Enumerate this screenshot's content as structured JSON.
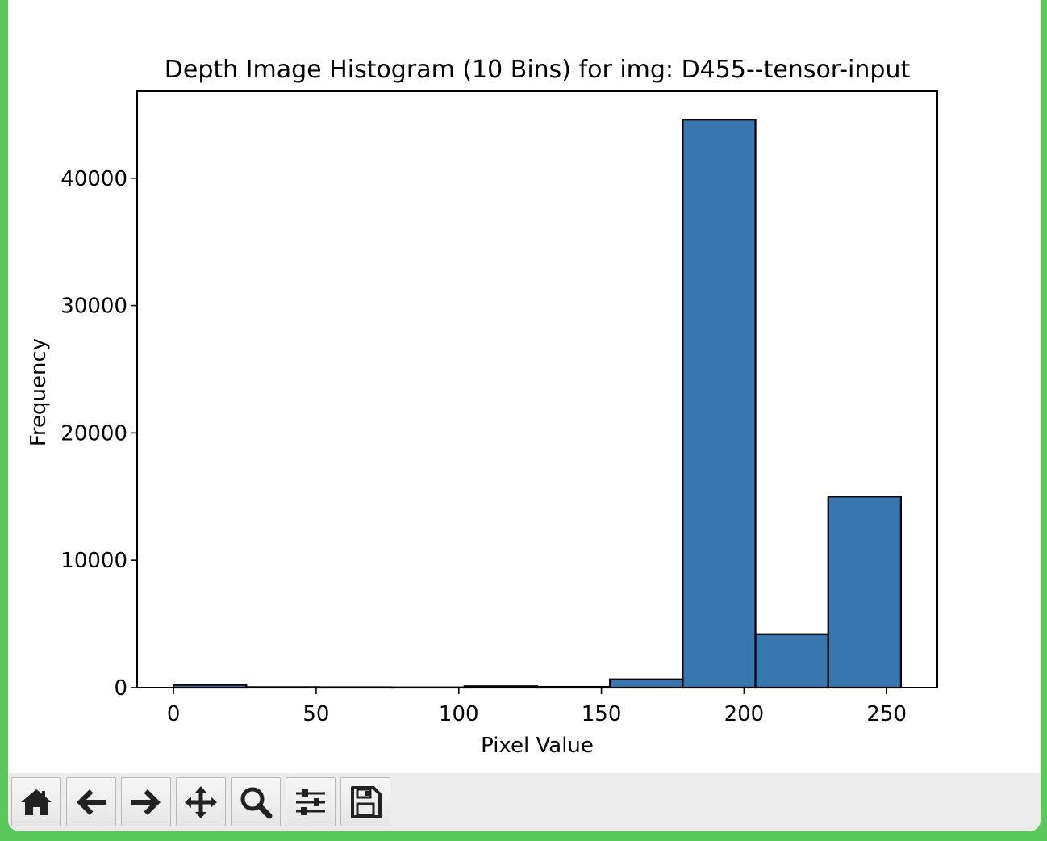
{
  "chart_data": {
    "type": "bar",
    "title": "Depth Image Histogram (10 Bins) for img: D455--tensor-input",
    "xlabel": "Pixel Value",
    "ylabel": "Frequency",
    "bin_edges": [
      0,
      25.5,
      51,
      76.5,
      102,
      127.5,
      153,
      178.5,
      204,
      229.5,
      255
    ],
    "values": [
      220,
      40,
      30,
      20,
      110,
      60,
      650,
      44600,
      4200,
      15000
    ],
    "xlim": [
      -12.75,
      267.75
    ],
    "ylim": [
      0,
      46830
    ],
    "xticks": [
      0,
      50,
      100,
      150,
      200,
      250
    ],
    "yticks": [
      0,
      10000,
      20000,
      30000,
      40000
    ],
    "xtick_labels": [
      "0",
      "50",
      "100",
      "150",
      "200",
      "250"
    ],
    "ytick_labels": [
      "0",
      "10000",
      "20000",
      "30000",
      "40000"
    ],
    "bar_color": "#3776ae",
    "edge_color": "#000000",
    "grid": false,
    "legend": null
  },
  "toolbar": {
    "buttons": [
      {
        "name": "home-button",
        "icon": "home-icon"
      },
      {
        "name": "back-button",
        "icon": "arrow-left-icon"
      },
      {
        "name": "forward-button",
        "icon": "arrow-right-icon"
      },
      {
        "name": "pan-button",
        "icon": "move-arrows-icon"
      },
      {
        "name": "zoom-button",
        "icon": "magnifier-icon"
      },
      {
        "name": "configure-subplots-button",
        "icon": "sliders-icon"
      },
      {
        "name": "save-button",
        "icon": "floppy-disk-icon"
      }
    ]
  }
}
